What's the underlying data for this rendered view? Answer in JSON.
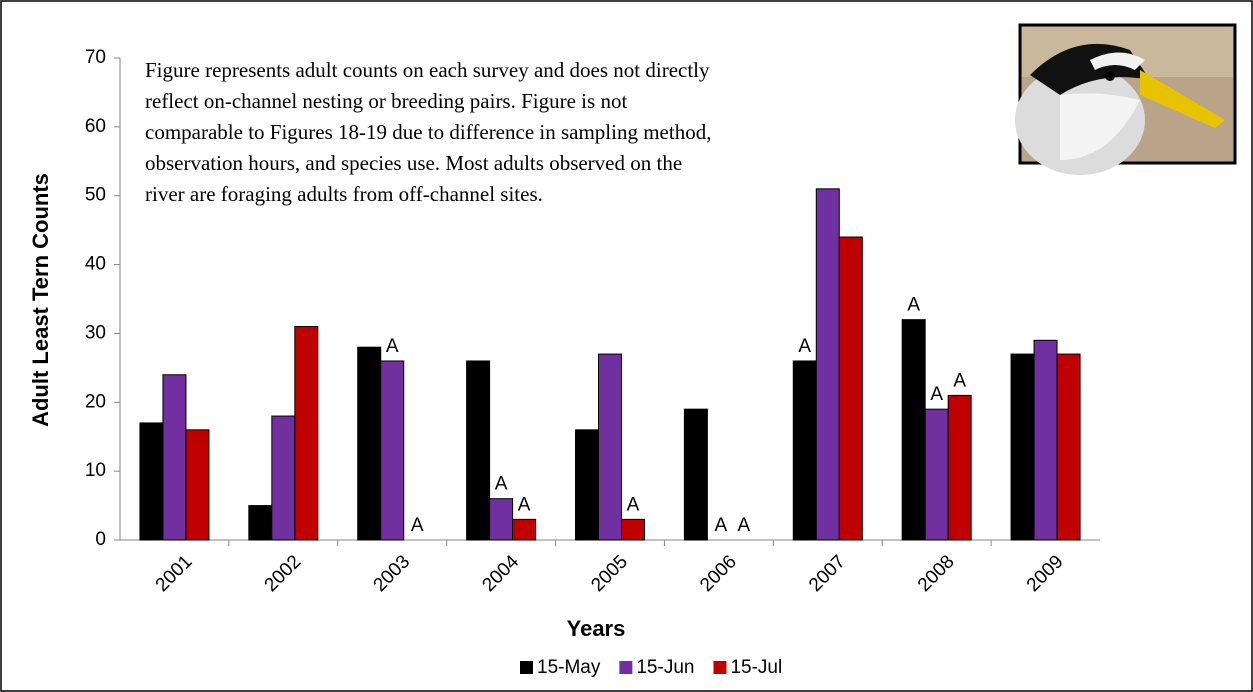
{
  "chart_data": {
    "type": "bar",
    "y_label": "Adult Least Tern Counts",
    "x_label": "Years",
    "note_lines": [
      "Figure represents adult counts on each survey and does not directly",
      "reflect on-channel nesting or breeding pairs. Figure is not",
      "comparable to Figures 18-19 due to difference in sampling method,",
      "observation hours, and species use. Most adults observed on the",
      "river are foraging adults from off-channel sites."
    ],
    "categories": [
      "2001",
      "2002",
      "2003",
      "2004",
      "2005",
      "2006",
      "2007",
      "2008",
      "2009"
    ],
    "series": [
      {
        "name": "15-May",
        "color": "#000000",
        "values": [
          17,
          5,
          28,
          26,
          16,
          19,
          26,
          32,
          27
        ],
        "notes": [
          null,
          null,
          null,
          null,
          null,
          null,
          "A",
          "A",
          null
        ]
      },
      {
        "name": "15-Jun",
        "color": "#7030a0",
        "values": [
          24,
          18,
          26,
          6,
          27,
          null,
          51,
          19,
          29
        ],
        "notes": [
          null,
          null,
          "A",
          "A",
          null,
          "A",
          null,
          "A",
          null
        ]
      },
      {
        "name": "15-Jul",
        "color": "#c00000",
        "values": [
          16,
          31,
          null,
          3,
          3,
          null,
          44,
          21,
          27
        ],
        "notes": [
          null,
          null,
          "A",
          "A",
          "A",
          "A",
          null,
          "A",
          null
        ]
      }
    ],
    "ylim": [
      0,
      70
    ],
    "yticks": [
      0,
      10,
      20,
      30,
      40,
      50,
      60,
      70
    ],
    "grid": false,
    "legend": "bottom"
  }
}
